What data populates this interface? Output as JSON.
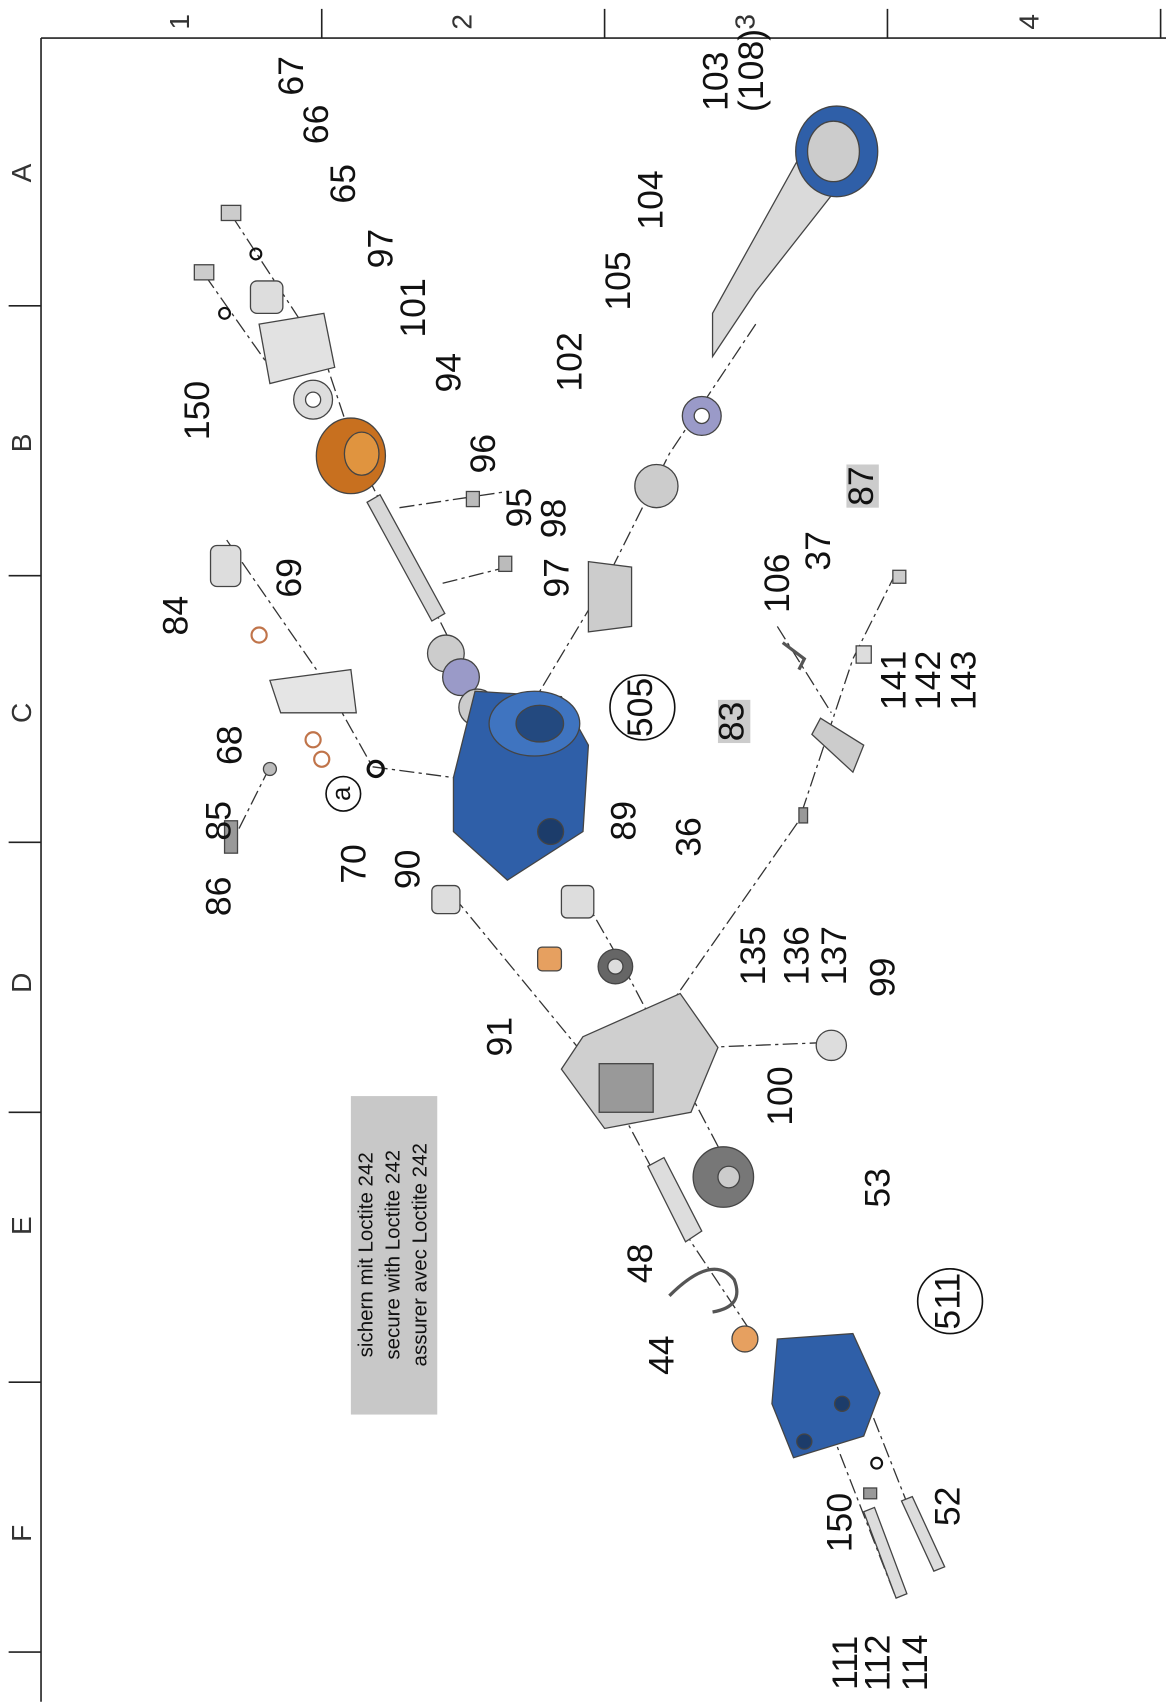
{
  "frame": {
    "columns": [
      "1",
      "2",
      "3",
      "4"
    ],
    "rows": [
      "A",
      "B",
      "C",
      "D",
      "E",
      "F"
    ]
  },
  "parts": [
    "67",
    "66",
    "65",
    "97",
    "101",
    "94",
    "150",
    "96",
    "95",
    "98",
    "97",
    "102",
    "105",
    "104",
    "103",
    "(108)",
    "84",
    "69",
    "68",
    "a",
    "85",
    "86",
    "70",
    "90",
    "505",
    "89",
    "36",
    "83",
    "87",
    "106",
    "37",
    "141",
    "142",
    "143",
    "135",
    "136",
    "137",
    "99",
    "91",
    "100",
    "53",
    "48",
    "44",
    "511",
    "150",
    "52",
    "111",
    "112",
    "114"
  ],
  "note": [
    "sichern mit Loctite 242",
    "secure with Loctite 242",
    "assurer avec Loctite 242"
  ]
}
